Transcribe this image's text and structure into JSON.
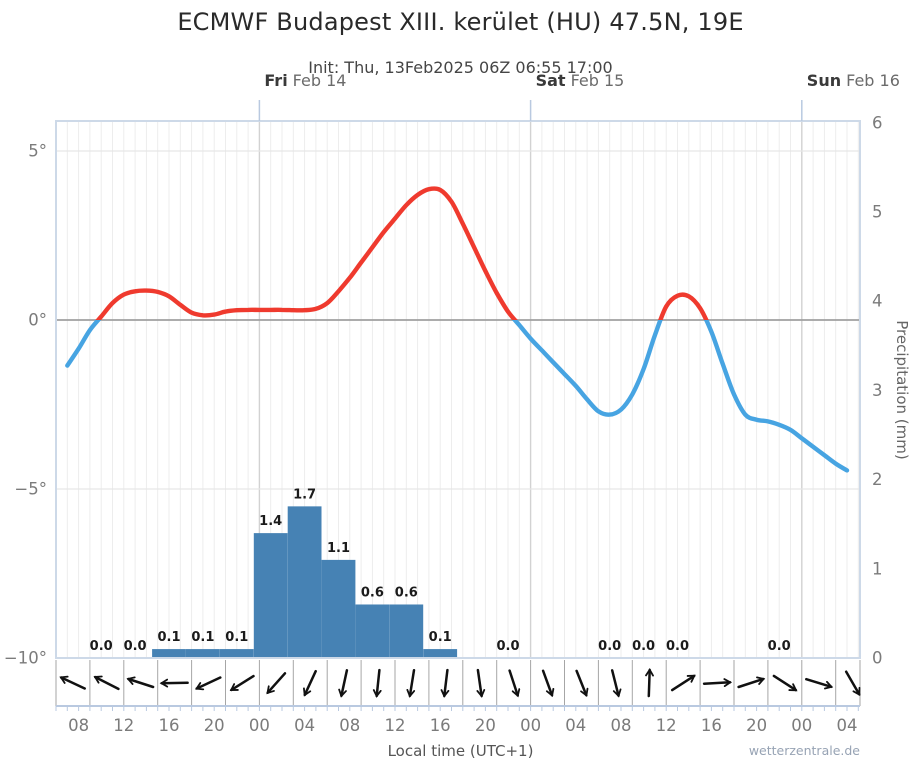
{
  "title": "ECMWF Budapest XIII. kerület (HU) 47.5N, 19E",
  "subtitle": "Init: Thu, 13Feb2025 06Z 06:55 17:00",
  "footer": {
    "xlabel": "Local time (UTC+1)",
    "watermark": "wetterzentrale.de"
  },
  "colors": {
    "temp_above_zero": "#ef3a2e",
    "temp_below_zero": "#47a4e2",
    "precip_bar": "#4682b4",
    "grid": "#ededed",
    "grid_day": "#d2d2d2",
    "grid_horizontal": "#e6e6e6",
    "zero_line": "#a0a0a0",
    "plot_border": "#cdd9e8",
    "axis_blue": "#b9c9e0",
    "wind_divider": "#a6a6a6",
    "arrow": "#111111",
    "tick_text": "#7b7b7b",
    "bar_label_text": "#1a1a1a"
  },
  "chart_data": {
    "type": [
      "line",
      "bar"
    ],
    "title": "ECMWF Budapest XIII. kerület (HU) 47.5N, 19E",
    "subtitle": "Init: Thu, 13Feb2025 06Z 06:55 17:00",
    "x_axis": {
      "label": "Local time (UTC+1)",
      "note": "t = hours since Thu 13Feb2025 00:00 local (UTC+1); axis spans t=6 to t=77.2",
      "range_hours": [
        6,
        77.2
      ],
      "time_ticks": [
        {
          "t": 8,
          "label": "08"
        },
        {
          "t": 12,
          "label": "12"
        },
        {
          "t": 16,
          "label": "16"
        },
        {
          "t": 20,
          "label": "20"
        },
        {
          "t": 24,
          "label": "00"
        },
        {
          "t": 28,
          "label": "04"
        },
        {
          "t": 32,
          "label": "08"
        },
        {
          "t": 36,
          "label": "12"
        },
        {
          "t": 40,
          "label": "16"
        },
        {
          "t": 44,
          "label": "20"
        },
        {
          "t": 48,
          "label": "00"
        },
        {
          "t": 52,
          "label": "04"
        },
        {
          "t": 56,
          "label": "08"
        },
        {
          "t": 60,
          "label": "12"
        },
        {
          "t": 64,
          "label": "16"
        },
        {
          "t": 68,
          "label": "20"
        },
        {
          "t": 72,
          "label": "00"
        },
        {
          "t": 76,
          "label": "04"
        }
      ],
      "days": [
        {
          "t": 24,
          "day": "Fri",
          "date": "Feb 14"
        },
        {
          "t": 48,
          "day": "Sat",
          "date": "Feb 15"
        },
        {
          "t": 72,
          "day": "Sun",
          "date": "Feb 16"
        }
      ]
    },
    "temp_axis": {
      "side": "left",
      "ticks": [
        {
          "value": 5,
          "label": "5°"
        },
        {
          "value": 0,
          "label": "0°"
        },
        {
          "value": -5,
          "label": "−5°"
        },
        {
          "value": -10,
          "label": "−10°"
        }
      ],
      "range": [
        -10,
        5.9
      ]
    },
    "precip_axis": {
      "side": "right",
      "label": "Precipitation (mm)",
      "ticks": [
        {
          "value": 6,
          "label": "6"
        },
        {
          "value": 5,
          "label": "5"
        },
        {
          "value": 4,
          "label": "4"
        },
        {
          "value": 3,
          "label": "3"
        },
        {
          "value": 2,
          "label": "2"
        },
        {
          "value": 1,
          "label": "1"
        },
        {
          "value": 0,
          "label": "0"
        }
      ],
      "range": [
        0,
        6
      ]
    },
    "temperature_c": [
      [
        7,
        -1.35
      ],
      [
        8,
        -0.85
      ],
      [
        9,
        -0.3
      ],
      [
        10,
        0.1
      ],
      [
        11,
        0.5
      ],
      [
        12,
        0.75
      ],
      [
        13,
        0.85
      ],
      [
        14,
        0.87
      ],
      [
        15,
        0.83
      ],
      [
        16,
        0.7
      ],
      [
        17,
        0.45
      ],
      [
        18,
        0.22
      ],
      [
        19,
        0.14
      ],
      [
        20,
        0.16
      ],
      [
        21,
        0.25
      ],
      [
        22,
        0.29
      ],
      [
        23,
        0.3
      ],
      [
        24,
        0.3
      ],
      [
        25,
        0.3
      ],
      [
        26,
        0.3
      ],
      [
        27,
        0.29
      ],
      [
        28,
        0.29
      ],
      [
        29,
        0.33
      ],
      [
        30,
        0.5
      ],
      [
        31,
        0.85
      ],
      [
        32,
        1.25
      ],
      [
        33,
        1.7
      ],
      [
        34,
        2.15
      ],
      [
        35,
        2.6
      ],
      [
        36,
        3.0
      ],
      [
        37,
        3.4
      ],
      [
        38,
        3.7
      ],
      [
        39,
        3.87
      ],
      [
        40,
        3.85
      ],
      [
        41,
        3.5
      ],
      [
        42,
        2.85
      ],
      [
        43,
        2.15
      ],
      [
        44,
        1.45
      ],
      [
        45,
        0.8
      ],
      [
        46,
        0.25
      ],
      [
        47,
        -0.15
      ],
      [
        48,
        -0.55
      ],
      [
        49,
        -0.9
      ],
      [
        50,
        -1.25
      ],
      [
        51,
        -1.6
      ],
      [
        52,
        -1.95
      ],
      [
        53,
        -2.35
      ],
      [
        54,
        -2.7
      ],
      [
        55,
        -2.8
      ],
      [
        56,
        -2.65
      ],
      [
        57,
        -2.2
      ],
      [
        58,
        -1.45
      ],
      [
        59,
        -0.45
      ],
      [
        60,
        0.4
      ],
      [
        61,
        0.72
      ],
      [
        62,
        0.7
      ],
      [
        63,
        0.35
      ],
      [
        64,
        -0.35
      ],
      [
        65,
        -1.3
      ],
      [
        66,
        -2.2
      ],
      [
        67,
        -2.8
      ],
      [
        68,
        -2.95
      ],
      [
        69,
        -3.0
      ],
      [
        70,
        -3.1
      ],
      [
        71,
        -3.25
      ],
      [
        72,
        -3.5
      ],
      [
        73,
        -3.75
      ],
      [
        74,
        -4.0
      ],
      [
        75,
        -4.25
      ],
      [
        76,
        -4.45
      ]
    ],
    "precipitation_mm": [
      {
        "t": 10,
        "value": 0.0,
        "label": "0.0"
      },
      {
        "t": 13,
        "value": 0.0,
        "label": "0.0"
      },
      {
        "t": 16,
        "value": 0.1,
        "label": "0.1"
      },
      {
        "t": 19,
        "value": 0.1,
        "label": "0.1"
      },
      {
        "t": 22,
        "value": 0.1,
        "label": "0.1"
      },
      {
        "t": 25,
        "value": 1.4,
        "label": "1.4"
      },
      {
        "t": 28,
        "value": 1.7,
        "label": "1.7"
      },
      {
        "t": 31,
        "value": 1.1,
        "label": "1.1"
      },
      {
        "t": 34,
        "value": 0.6,
        "label": "0.6"
      },
      {
        "t": 37,
        "value": 0.6,
        "label": "0.6"
      },
      {
        "t": 40,
        "value": 0.1,
        "label": "0.1"
      },
      {
        "t": 43,
        "value": 0.0,
        "label": null
      },
      {
        "t": 46,
        "value": 0.0,
        "label": "0.0"
      },
      {
        "t": 49,
        "value": 0.0,
        "label": null
      },
      {
        "t": 52,
        "value": 0.0,
        "label": null
      },
      {
        "t": 55,
        "value": 0.0,
        "label": "0.0"
      },
      {
        "t": 58,
        "value": 0.0,
        "label": "0.0"
      },
      {
        "t": 61,
        "value": 0.0,
        "label": "0.0"
      },
      {
        "t": 64,
        "value": 0.0,
        "label": null
      },
      {
        "t": 67,
        "value": 0.0,
        "label": null
      },
      {
        "t": 70,
        "value": 0.0,
        "label": "0.0"
      },
      {
        "t": 73,
        "value": 0.0,
        "label": null
      },
      {
        "t": 76,
        "value": 0.0,
        "label": null
      }
    ],
    "wind_arrows": [
      {
        "t": 7.5,
        "dir_deg": 155
      },
      {
        "t": 10.5,
        "dir_deg": 153
      },
      {
        "t": 13.5,
        "dir_deg": 162
      },
      {
        "t": 16.5,
        "dir_deg": 181
      },
      {
        "t": 19.5,
        "dir_deg": 205
      },
      {
        "t": 22.5,
        "dir_deg": 212
      },
      {
        "t": 25.5,
        "dir_deg": 228
      },
      {
        "t": 28.5,
        "dir_deg": 245
      },
      {
        "t": 31.5,
        "dir_deg": 258
      },
      {
        "t": 34.5,
        "dir_deg": 264
      },
      {
        "t": 37.5,
        "dir_deg": 261
      },
      {
        "t": 40.5,
        "dir_deg": 263
      },
      {
        "t": 43.5,
        "dir_deg": 278
      },
      {
        "t": 46.5,
        "dir_deg": 288
      },
      {
        "t": 49.5,
        "dir_deg": 290
      },
      {
        "t": 52.5,
        "dir_deg": 292
      },
      {
        "t": 55.5,
        "dir_deg": 284
      },
      {
        "t": 58.5,
        "dir_deg": 88
      },
      {
        "t": 61.5,
        "dir_deg": 33
      },
      {
        "t": 64.5,
        "dir_deg": 3
      },
      {
        "t": 67.5,
        "dir_deg": 18
      },
      {
        "t": 70.5,
        "dir_deg": 327
      },
      {
        "t": 73.5,
        "dir_deg": 343
      },
      {
        "t": 76.5,
        "dir_deg": 300
      }
    ]
  }
}
